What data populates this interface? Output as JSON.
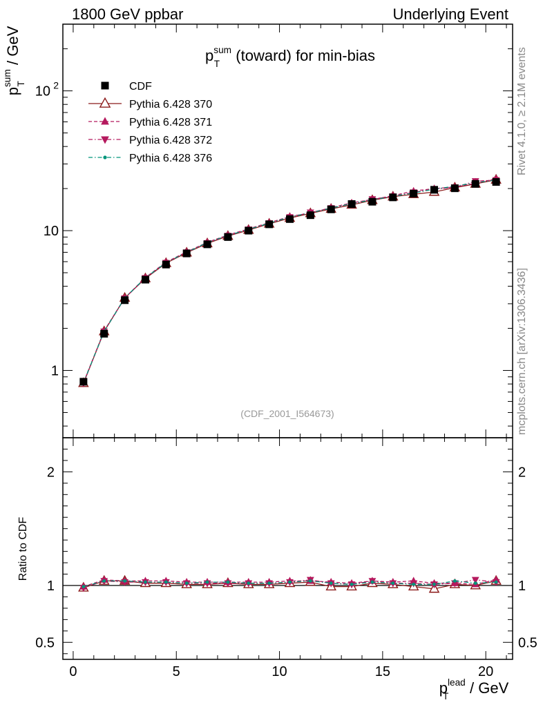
{
  "header": {
    "left": "1800 GeV ppbar",
    "right": "Underlying Event"
  },
  "side_labels": {
    "rivet": "Rivet 4.1.0, ≥ 2.1M events",
    "mcplots": "mcplots.cern.ch [arXiv:1306.3436]"
  },
  "chart_data": [
    {
      "type": "line",
      "panel": "main",
      "title": "p_T^sum (toward) for min-bias",
      "title_parts": [
        "p",
        "T",
        "sum",
        " (toward) for min-bias"
      ],
      "ylabel_parts": [
        "p",
        "T",
        "sum",
        " / GeV"
      ],
      "watermark": "(CDF_2001_I564673)",
      "yscale": "log",
      "ylim": [
        0.33,
        300
      ],
      "xlim": [
        -0.5,
        21.3
      ],
      "yticks": [
        {
          "value": 1,
          "label": "1"
        },
        {
          "value": 10,
          "label": "10"
        },
        {
          "value": 100,
          "label": "10",
          "sup": "2"
        }
      ],
      "legend_position": "top-left",
      "x": [
        0.5,
        1.5,
        2.5,
        3.5,
        4.5,
        5.5,
        6.5,
        7.5,
        8.5,
        9.5,
        10.5,
        11.5,
        12.5,
        13.5,
        14.5,
        15.5,
        16.5,
        17.5,
        18.5,
        19.5,
        20.5
      ],
      "series": [
        {
          "name": "CDF",
          "color": "#000000",
          "marker": "square-filled",
          "line": "none",
          "values": [
            0.83,
            1.83,
            3.18,
            4.46,
            5.72,
            6.87,
            7.98,
            9.0,
            10.0,
            11.1,
            12.1,
            12.9,
            14.2,
            15.5,
            16.1,
            17.3,
            18.4,
            19.6,
            20.1,
            21.6,
            22.3
          ]
        },
        {
          "name": "Pythia 6.428 370",
          "color": "#8b1a1a",
          "marker": "triangle-open",
          "line": "solid",
          "values": [
            0.81,
            1.9,
            3.3,
            4.55,
            5.85,
            6.95,
            8.1,
            9.15,
            10.1,
            11.2,
            12.3,
            13.3,
            14.3,
            15.3,
            16.5,
            17.5,
            18.2,
            18.9,
            20.3,
            21.6,
            23.1
          ]
        },
        {
          "name": "Pythia 6.428 371",
          "color": "#b5195e",
          "marker": "triangle-up-filled",
          "line": "dashed",
          "values": [
            0.82,
            1.92,
            3.3,
            4.62,
            5.95,
            7.05,
            8.25,
            9.3,
            10.3,
            11.4,
            12.6,
            13.4,
            14.6,
            15.8,
            16.7,
            17.8,
            19.2,
            20.0,
            20.5,
            21.8,
            23.5
          ]
        },
        {
          "name": "Pythia 6.428 372",
          "color": "#b5195e",
          "marker": "triangle-down-filled",
          "line": "dashdot",
          "values": [
            0.81,
            1.9,
            3.28,
            4.58,
            5.88,
            7.0,
            8.15,
            9.2,
            10.2,
            11.3,
            12.5,
            13.5,
            14.5,
            15.6,
            16.8,
            17.6,
            18.8,
            19.8,
            20.4,
            22.6,
            23.0
          ]
        },
        {
          "name": "Pythia 6.428 376",
          "color": "#00957a",
          "marker": "dot",
          "line": "dashdot",
          "values": [
            0.82,
            1.9,
            3.3,
            4.6,
            5.9,
            7.0,
            8.2,
            9.25,
            10.2,
            11.3,
            12.5,
            13.4,
            14.5,
            15.6,
            16.6,
            17.6,
            18.6,
            19.8,
            20.8,
            22.0,
            23.0
          ]
        }
      ]
    },
    {
      "type": "line",
      "panel": "ratio",
      "ylabel": "Ratio to CDF",
      "xlabel_parts": [
        "p",
        "T",
        "lead",
        " / GeV"
      ],
      "ylim": [
        0.35,
        2.3
      ],
      "xlim": [
        -0.5,
        21.3
      ],
      "yticks": [
        {
          "value": 0.5,
          "label": "0.5"
        },
        {
          "value": 1,
          "label": "1"
        },
        {
          "value": 2,
          "label": "2"
        }
      ],
      "xticks": [
        0,
        5,
        10,
        15,
        20
      ],
      "x": [
        0.5,
        1.5,
        2.5,
        3.5,
        4.5,
        5.5,
        6.5,
        7.5,
        8.5,
        9.5,
        10.5,
        11.5,
        12.5,
        13.5,
        14.5,
        15.5,
        16.5,
        17.5,
        18.5,
        19.5,
        20.5
      ],
      "series": [
        {
          "name": "Pythia 6.428 370",
          "color": "#8b1a1a",
          "marker": "triangle-open",
          "line": "solid",
          "values": [
            0.98,
            1.04,
            1.04,
            1.02,
            1.02,
            1.01,
            1.01,
            1.02,
            1.01,
            1.01,
            1.02,
            1.03,
            0.99,
            0.99,
            1.02,
            1.01,
            0.99,
            0.97,
            1.01,
            1.0,
            1.04
          ]
        },
        {
          "name": "Pythia 6.428 371",
          "color": "#b5195e",
          "marker": "triangle-up-filled",
          "line": "dashed",
          "values": [
            0.99,
            1.05,
            1.04,
            1.04,
            1.04,
            1.03,
            1.03,
            1.03,
            1.03,
            1.03,
            1.04,
            1.04,
            1.03,
            1.02,
            1.04,
            1.03,
            1.04,
            1.02,
            1.02,
            1.01,
            1.05
          ]
        },
        {
          "name": "Pythia 6.428 372",
          "color": "#b5195e",
          "marker": "triangle-down-filled",
          "line": "dashdot",
          "values": [
            0.98,
            1.04,
            1.03,
            1.03,
            1.03,
            1.02,
            1.02,
            1.02,
            1.02,
            1.02,
            1.03,
            1.05,
            1.02,
            1.01,
            1.04,
            1.02,
            1.02,
            1.01,
            1.02,
            1.05,
            1.03
          ]
        },
        {
          "name": "Pythia 6.428 376",
          "color": "#00957a",
          "marker": "dot",
          "line": "dashdot",
          "values": [
            0.99,
            1.04,
            1.04,
            1.03,
            1.03,
            1.02,
            1.03,
            1.03,
            1.02,
            1.02,
            1.03,
            1.04,
            1.02,
            1.01,
            1.03,
            1.02,
            1.01,
            1.01,
            1.04,
            1.02,
            1.03
          ]
        }
      ]
    }
  ]
}
